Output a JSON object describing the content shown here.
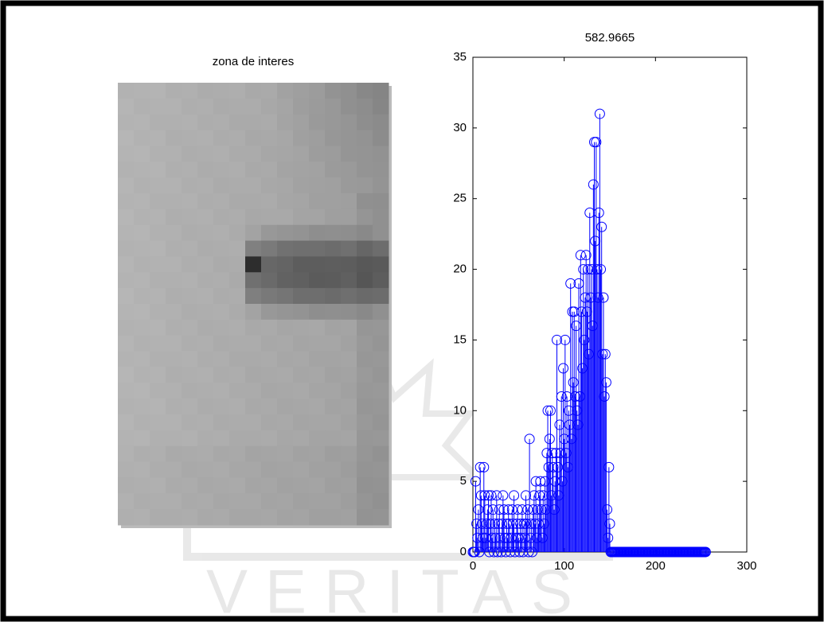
{
  "watermark": "VERITAS",
  "chart_data": [
    {
      "type": "image",
      "title": "zona de interes"
    },
    {
      "type": "stem",
      "title": "582.9665",
      "color": "#0000ff",
      "xlim": [
        0,
        300
      ],
      "xticks": [
        0,
        100,
        200,
        300
      ],
      "ylim": [
        0,
        35
      ],
      "yticks": [
        0,
        5,
        10,
        15,
        20,
        25,
        30,
        35
      ],
      "x": [
        0,
        1,
        2,
        3,
        4,
        5,
        6,
        7,
        8,
        9,
        10,
        11,
        12,
        13,
        14,
        15,
        16,
        17,
        18,
        19,
        20,
        21,
        22,
        23,
        24,
        25,
        26,
        27,
        28,
        29,
        30,
        31,
        32,
        33,
        34,
        35,
        36,
        37,
        38,
        39,
        40,
        41,
        42,
        43,
        44,
        45,
        46,
        47,
        48,
        49,
        50,
        51,
        52,
        53,
        54,
        55,
        56,
        57,
        58,
        59,
        60,
        61,
        62,
        63,
        64,
        65,
        66,
        67,
        68,
        69,
        70,
        71,
        72,
        73,
        74,
        75,
        76,
        77,
        78,
        79,
        80,
        81,
        82,
        83,
        84,
        85,
        86,
        87,
        88,
        89,
        90,
        91,
        92,
        93,
        94,
        95,
        96,
        97,
        98,
        99,
        100,
        101,
        102,
        103,
        104,
        105,
        106,
        107,
        108,
        109,
        110,
        111,
        112,
        113,
        114,
        115,
        116,
        117,
        118,
        119,
        120,
        121,
        122,
        123,
        124,
        125,
        126,
        127,
        128,
        129,
        130,
        131,
        132,
        133,
        134,
        135,
        136,
        137,
        138,
        139,
        140,
        141,
        142,
        143,
        144,
        145,
        146,
        147,
        148,
        149,
        150,
        151,
        152,
        153,
        154,
        155,
        156,
        157,
        158,
        159,
        160,
        161,
        162,
        163,
        164,
        165,
        166,
        167,
        168,
        169,
        170,
        171,
        172,
        173,
        174,
        175,
        176,
        177,
        178,
        179,
        180,
        181,
        182,
        183,
        184,
        185,
        186,
        187,
        188,
        189,
        190,
        191,
        192,
        193,
        194,
        195,
        196,
        197,
        198,
        199,
        200,
        201,
        202,
        203,
        204,
        205,
        206,
        207,
        208,
        209,
        210,
        211,
        212,
        213,
        214,
        215,
        216,
        217,
        218,
        219,
        220,
        221,
        222,
        223,
        224,
        225,
        226,
        227,
        228,
        229,
        230,
        231,
        232,
        233,
        234,
        235,
        236,
        237,
        238,
        239,
        240,
        241,
        242,
        243,
        244,
        245,
        246,
        247,
        248,
        249,
        250,
        251,
        252,
        253,
        254,
        255
      ],
      "values": [
        0,
        0,
        0,
        5,
        2,
        1,
        3,
        0,
        6,
        4,
        2,
        1,
        6,
        4,
        1,
        2,
        3,
        4,
        0,
        2,
        4,
        1,
        3,
        0,
        2,
        1,
        4,
        0,
        2,
        3,
        1,
        0,
        2,
        4,
        3,
        1,
        0,
        2,
        1,
        3,
        2,
        0,
        1,
        3,
        2,
        4,
        0,
        1,
        2,
        3,
        1,
        0,
        2,
        1,
        3,
        0,
        2,
        1,
        4,
        2,
        3,
        0,
        8,
        1,
        2,
        0,
        3,
        4,
        2,
        5,
        1,
        3,
        2,
        4,
        5,
        3,
        1,
        4,
        2,
        5,
        3,
        7,
        10,
        6,
        8,
        10,
        4,
        7,
        6,
        3,
        5,
        7,
        15,
        6,
        4,
        9,
        7,
        11,
        5,
        13,
        8,
        15,
        7,
        11,
        6,
        10,
        9,
        19,
        8,
        17,
        12,
        17,
        11,
        16,
        10,
        9,
        19,
        11,
        21,
        17,
        13,
        20,
        15,
        18,
        21,
        17,
        20,
        14,
        24,
        18,
        20,
        16,
        26,
        29,
        22,
        29,
        20,
        18,
        24,
        31,
        20,
        23,
        14,
        18,
        11,
        14,
        12,
        3,
        1,
        6,
        2,
        0,
        0,
        0,
        0,
        0,
        0,
        0,
        0,
        0,
        0,
        0,
        0,
        0,
        0,
        0,
        0,
        0,
        0,
        0,
        0,
        0,
        0,
        0,
        0,
        0,
        0,
        0,
        0,
        0,
        0,
        0,
        0,
        0,
        0,
        0,
        0,
        0,
        0,
        0,
        0,
        0,
        0,
        0,
        0,
        0,
        0,
        0,
        0,
        0,
        0,
        0,
        0,
        0,
        0,
        0,
        0,
        0,
        0,
        0,
        0,
        0,
        0,
        0,
        0,
        0,
        0,
        0,
        0,
        0,
        0,
        0,
        0,
        0,
        0,
        0,
        0,
        0,
        0,
        0,
        0,
        0,
        0,
        0,
        0,
        0,
        0,
        0,
        0,
        0,
        0,
        0,
        0,
        0,
        0,
        0,
        0,
        0,
        0,
        0,
        0,
        0,
        0,
        0,
        0,
        0
      ]
    }
  ]
}
